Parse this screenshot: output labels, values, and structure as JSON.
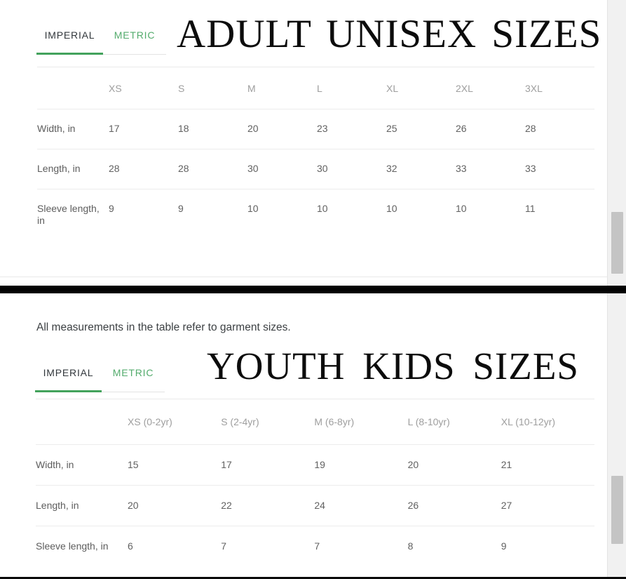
{
  "colors": {
    "accent_green_underline": "#43a25c",
    "metric_tab_green": "#53ab6c",
    "divider_black": "#040404",
    "header_gray": "#9e9e9e",
    "cell_gray": "#616161",
    "scroll_thumb_gray": "#c4c4c4"
  },
  "section_adult": {
    "title": "ADULT UNISEX SIZES",
    "tabs": {
      "imperial": "IMPERIAL",
      "metric": "METRIC"
    },
    "active_tab": "IMPERIAL",
    "table": {
      "columns": [
        "XS",
        "S",
        "M",
        "L",
        "XL",
        "2XL",
        "3XL"
      ],
      "rows": [
        {
          "label": "Width, in",
          "values": [
            "17",
            "18",
            "20",
            "23",
            "25",
            "26",
            "28"
          ]
        },
        {
          "label": "Length, in",
          "values": [
            "28",
            "28",
            "30",
            "30",
            "32",
            "33",
            "33"
          ]
        },
        {
          "label": "Sleeve length, in",
          "values": [
            "9",
            "9",
            "10",
            "10",
            "10",
            "10",
            "11"
          ]
        }
      ]
    }
  },
  "section_youth": {
    "note": "All measurements in the table refer to garment sizes.",
    "title": "YOUTH KIDS SIZES",
    "tabs": {
      "imperial": "IMPERIAL",
      "metric": "METRIC"
    },
    "active_tab": "IMPERIAL",
    "table": {
      "columns": [
        "XS (0-2yr)",
        "S (2-4yr)",
        "M (6-8yr)",
        "L (8-10yr)",
        "XL (10-12yr)"
      ],
      "rows": [
        {
          "label": "Width, in",
          "values": [
            "15",
            "17",
            "19",
            "20",
            "21"
          ]
        },
        {
          "label": "Length, in",
          "values": [
            "20",
            "22",
            "24",
            "26",
            "27"
          ]
        },
        {
          "label": "Sleeve length, in",
          "values": [
            "6",
            "7",
            "7",
            "8",
            "9"
          ]
        }
      ]
    }
  }
}
